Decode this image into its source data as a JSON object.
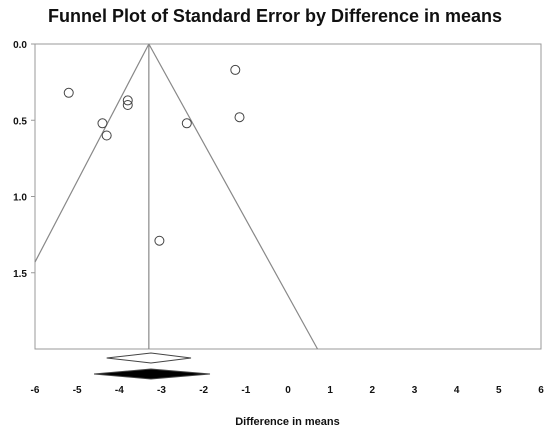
{
  "chart_data": {
    "type": "scatter",
    "title": "Funnel Plot of Standard Error by Difference in means",
    "xlabel": "Difference in means",
    "ylabel": "",
    "xlim": [
      -6,
      6
    ],
    "ylim": [
      0.0,
      2.0
    ],
    "y_inverted": true,
    "x_ticks": [
      "-6",
      "-5",
      "-4",
      "-3",
      "-2",
      "-1",
      "0",
      "1",
      "2",
      "3",
      "4",
      "5",
      "6"
    ],
    "y_ticks": [
      "0.0",
      "0.5",
      "1.0",
      "1.5"
    ],
    "points": [
      {
        "x": -5.2,
        "y": 0.32
      },
      {
        "x": -3.8,
        "y": 0.37
      },
      {
        "x": -3.8,
        "y": 0.4
      },
      {
        "x": -4.4,
        "y": 0.52
      },
      {
        "x": -4.3,
        "y": 0.6
      },
      {
        "x": -1.25,
        "y": 0.17
      },
      {
        "x": -2.4,
        "y": 0.52
      },
      {
        "x": -1.15,
        "y": 0.48
      },
      {
        "x": -3.05,
        "y": 1.29
      }
    ],
    "pooled_estimate": -3.3,
    "funnel_apex": {
      "x": -3.3,
      "y": 0.0
    },
    "funnel_edges": [
      {
        "x1": -3.3,
        "y1": 0.0,
        "x2": -6.0,
        "y2": 1.43
      },
      {
        "x1": -3.3,
        "y1": 0.0,
        "x2": 0.7,
        "y2": 2.0
      }
    ],
    "diamonds": [
      {
        "center": -3.25,
        "low": -4.3,
        "high": -2.3,
        "fill": "#ffffff"
      },
      {
        "center": -3.25,
        "low": -4.6,
        "high": -1.85,
        "fill": "#000000"
      }
    ]
  }
}
